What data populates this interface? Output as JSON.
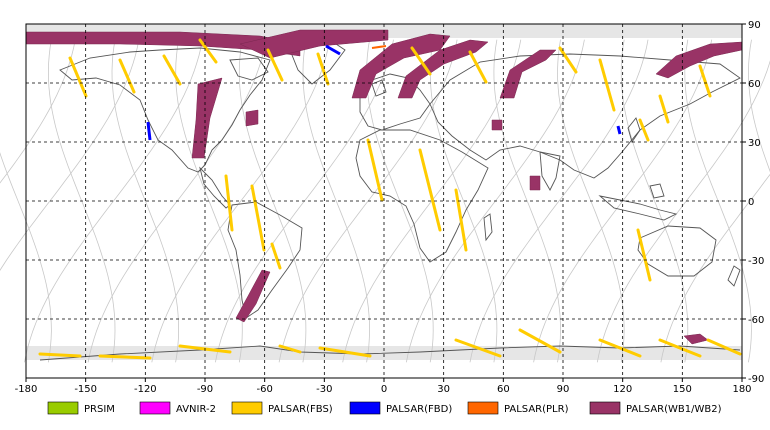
{
  "map": {
    "lon_range": [
      -180,
      180
    ],
    "lat_range": [
      -90,
      90
    ],
    "x_ticks": [
      "-180",
      "-150",
      "-120",
      "-90",
      "-60",
      "-30",
      "0",
      "30",
      "60",
      "90",
      "120",
      "150",
      "180"
    ],
    "y_ticks": [
      "90",
      "60",
      "30",
      "0",
      "-30",
      "-60",
      "-90"
    ],
    "grid": "dashed",
    "colors": {
      "background": "#ffffff",
      "gridline": "#000000",
      "coastline": "#555555",
      "orbit_track": "#c8c8c8",
      "polar_band": "#bfbfbf"
    }
  },
  "legend": [
    {
      "label": "PRSIM",
      "color": "#99cc00"
    },
    {
      "label": "AVNIR-2",
      "color": "#ff00ff"
    },
    {
      "label": "PALSAR(FBS)",
      "color": "#ffcc00"
    },
    {
      "label": "PALSAR(FBD)",
      "color": "#0000ff"
    },
    {
      "label": "PALSAR(PLR)",
      "color": "#ff6600"
    },
    {
      "label": "PALSAR(WB1/WB2)",
      "color": "#993366"
    }
  ]
}
